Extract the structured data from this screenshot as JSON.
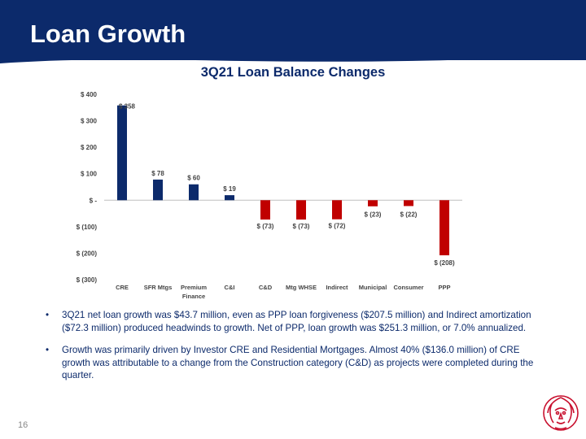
{
  "slide": {
    "title": "Loan Growth",
    "page_number": "16"
  },
  "colors": {
    "header": "#0c2a6b",
    "positive_bar": "#0c2a6b",
    "negative_bar": "#c00000",
    "logo": "#c8102e"
  },
  "chart_data": {
    "type": "bar",
    "title": "3Q21 Loan Balance Changes",
    "categories": [
      "CRE",
      "SFR Mtgs",
      "Premium Finance",
      "C&I",
      "C&D",
      "Mtg WHSE",
      "Indirect",
      "Municipal",
      "Consumer",
      "PPP"
    ],
    "values": [
      358,
      78,
      60,
      19,
      -73,
      -73,
      -72,
      -23,
      -22,
      -208
    ],
    "value_labels": [
      "$ 358",
      "$ 78",
      "$ 60",
      "$ 19",
      "$ (73)",
      "$ (73)",
      "$ (72)",
      "$ (23)",
      "$ (22)",
      "$ (208)"
    ],
    "ylim": [
      -300,
      400
    ],
    "yticks": [
      400,
      300,
      200,
      100,
      0,
      -100,
      -200,
      -300
    ],
    "ytick_labels": [
      "$ 400",
      "$ 300",
      "$ 200",
      "$ 100",
      "$ -",
      "$ (100)",
      "$ (200)",
      "$ (300)"
    ],
    "grid": false,
    "legend": "none"
  },
  "bullets": [
    "3Q21 net loan growth was $43.7 million, even as PPP loan forgiveness ($207.5 million) and Indirect amortization ($72.3 million) produced headwinds to growth.  Net of PPP, loan growth was $251.3 million, or 7.0% annualized.",
    "Growth was primarily driven by Investor CRE and Residential Mortgages.  Almost 40% ($136.0 million) of CRE growth was attributable to a change from the Construction category (C&D) as projects were completed during the quarter."
  ],
  "logo": {
    "icon": "lion-head-icon"
  }
}
